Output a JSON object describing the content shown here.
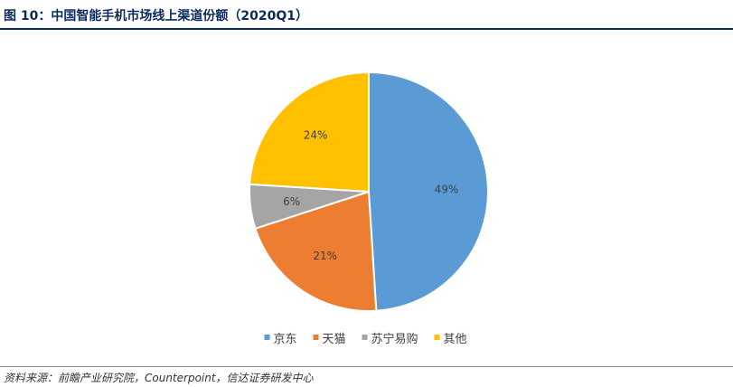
{
  "header": {
    "title": "图 10：中国智能手机市场线上渠道份额（2020Q1）"
  },
  "chart_data": {
    "type": "pie",
    "title": "",
    "legend_position": "bottom",
    "slices": [
      {
        "label": "京东",
        "value": 49,
        "value_label": "49%",
        "color": "#5b9bd5"
      },
      {
        "label": "天猫",
        "value": 21,
        "value_label": "21%",
        "color": "#ed7d31"
      },
      {
        "label": "苏宁易购",
        "value": 6,
        "value_label": "6%",
        "color": "#a5a5a5"
      },
      {
        "label": "其他",
        "value": 24,
        "value_label": "24%",
        "color": "#ffc000"
      }
    ]
  },
  "footer": {
    "source": "资料来源：前瞻产业研究院，Counterpoint，信达证券研发中心"
  }
}
